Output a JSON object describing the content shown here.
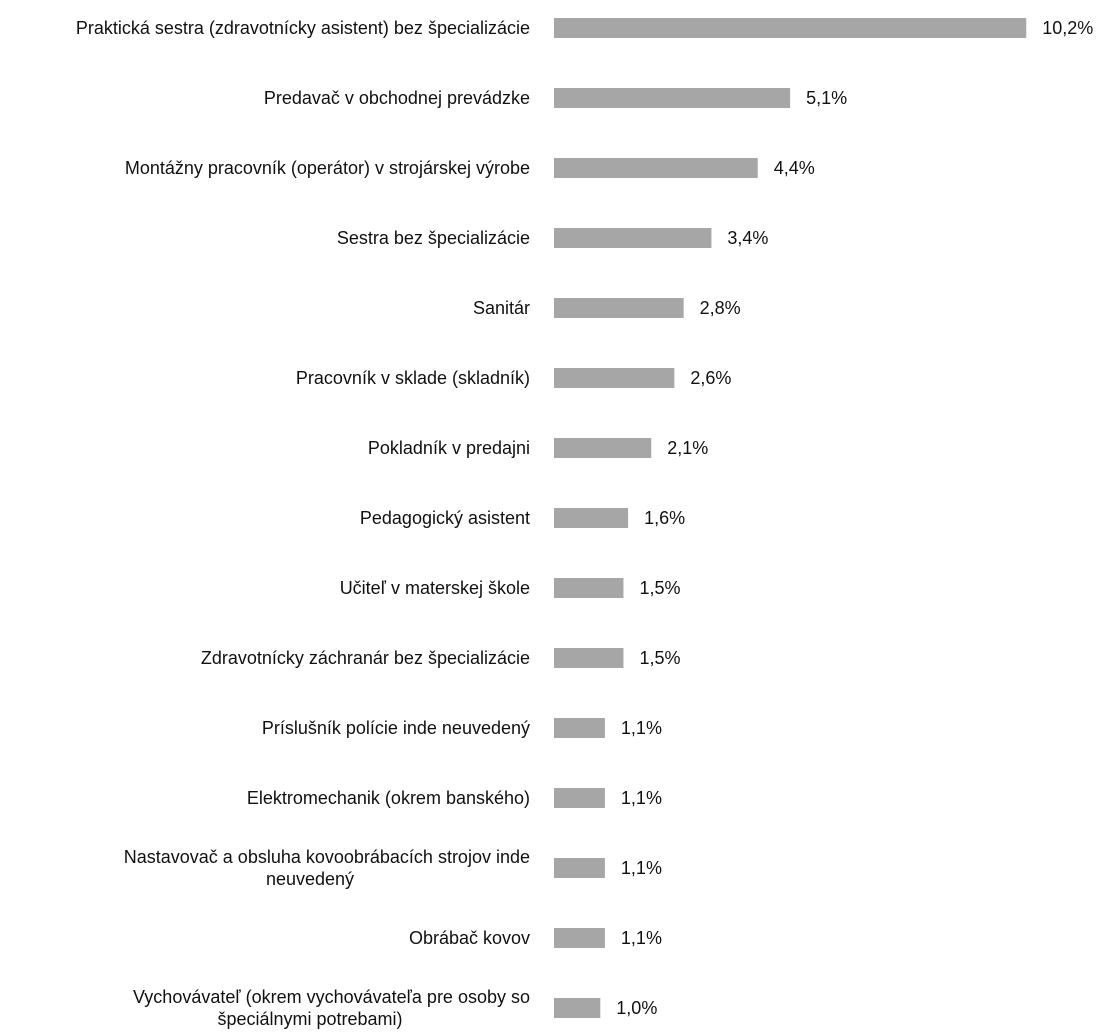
{
  "chart_data": {
    "type": "bar",
    "orientation": "horizontal",
    "categories": [
      "Praktická sestra (zdravotnícky asistent) bez špecializácie",
      "Predavač v obchodnej prevádzke",
      "Montážny pracovník (operátor) v strojárskej výrobe",
      "Sestra bez špecializácie",
      "Sanitár",
      "Pracovník v sklade (skladník)",
      "Pokladník v predajni",
      "Pedagogický asistent",
      "Učiteľ v materskej škole",
      "Zdravotnícky záchranár bez špecializácie",
      "Príslušník polície inde neuvedený",
      "Elektromechanik (okrem banského)",
      "Nastavovač a obsluha kovoobrábacích strojov inde neuvedený",
      "Obrábač kovov",
      "Vychovávateľ (okrem vychovávateľa pre osoby so špeciálnymi potrebami)"
    ],
    "category_lines": [
      [
        "Praktická sestra (zdravotnícky asistent) bez špecializácie"
      ],
      [
        "Predavač v obchodnej prevádzke"
      ],
      [
        "Montážny pracovník (operátor) v strojárskej výrobe"
      ],
      [
        "Sestra bez špecializácie"
      ],
      [
        "Sanitár"
      ],
      [
        "Pracovník v sklade (skladník)"
      ],
      [
        "Pokladník v predajni"
      ],
      [
        "Pedagogický asistent"
      ],
      [
        "Učiteľ v materskej škole"
      ],
      [
        "Zdravotnícky záchranár bez špecializácie"
      ],
      [
        "Príslušník polície inde neuvedený"
      ],
      [
        "Elektromechanik (okrem banského)"
      ],
      [
        "Nastavovač a obsluha kovoobrábacích strojov inde",
        "neuvedený"
      ],
      [
        "Obrábač kovov"
      ],
      [
        "Vychovávateľ (okrem vychovávateľa pre osoby so",
        "špeciálnymi potrebami)"
      ]
    ],
    "values": [
      10.2,
      5.1,
      4.4,
      3.4,
      2.8,
      2.6,
      2.1,
      1.6,
      1.5,
      1.5,
      1.1,
      1.1,
      1.1,
      1.1,
      1.0
    ],
    "value_labels": [
      "10,2%",
      "5,1%",
      "4,4%",
      "3,4%",
      "2,8%",
      "2,6%",
      "2,1%",
      "1,6%",
      "1,5%",
      "1,5%",
      "1,1%",
      "1,1%",
      "1,1%",
      "1,1%",
      "1,0%"
    ],
    "title": "",
    "xlabel": "",
    "ylabel": "",
    "grid": false,
    "legend": "none",
    "bar_color": "#a6a6a6"
  }
}
